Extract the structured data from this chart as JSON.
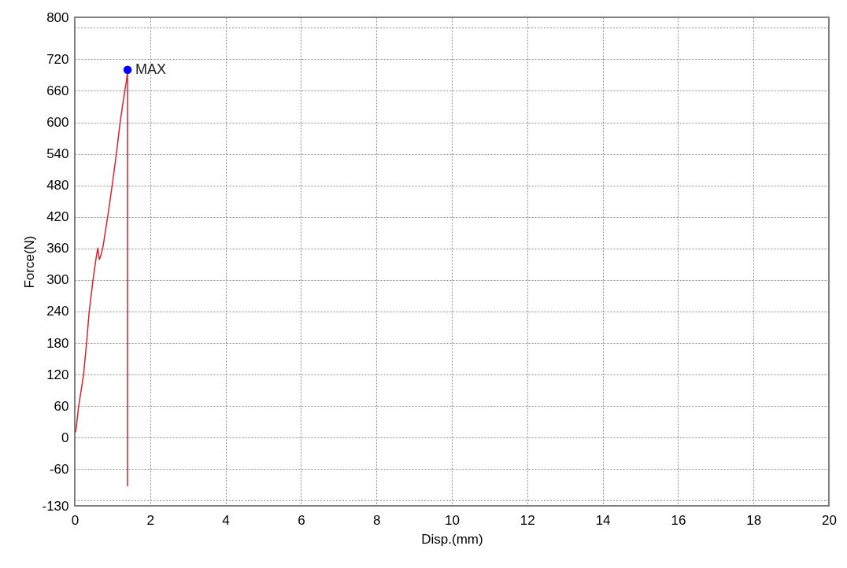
{
  "chart_data": {
    "type": "line",
    "xlabel": "Disp.(mm)",
    "ylabel": "Force(N)",
    "xlim": [
      0,
      20
    ],
    "xticks": [
      0,
      2,
      4,
      6,
      8,
      10,
      12,
      14,
      16,
      18,
      20
    ],
    "ylim": [
      -130,
      800
    ],
    "yticks": [
      800,
      {
        "value": 780,
        "label": null
      },
      720,
      660,
      600,
      540,
      480,
      420,
      360,
      300,
      240,
      180,
      120,
      60,
      0,
      -60,
      {
        "value": -120,
        "label": null
      },
      -130
    ],
    "grid": true,
    "series": [
      {
        "color": "#d9232e",
        "marker": "none",
        "line_style": "solid",
        "x": [
          0.02,
          0.04,
          0.1,
          0.23,
          0.31,
          0.38,
          0.48,
          0.56,
          0.61,
          0.65,
          0.69,
          0.75,
          0.88,
          1.0,
          1.11,
          1.21,
          1.29,
          1.38,
          1.4,
          1.4
        ],
        "values": [
          10,
          20,
          58,
          118,
          178,
          238,
          298,
          339,
          361,
          339,
          346,
          364,
          424,
          484,
          544,
          604,
          643,
          684,
          700,
          -93
        ]
      },
      {
        "type": "scatter",
        "color": "#0000ff",
        "marker": "circle",
        "x": [
          1.4
        ],
        "values": [
          700
        ]
      }
    ],
    "annotations": [
      {
        "text": "MAX",
        "x": 1.4,
        "y": 700
      }
    ]
  }
}
